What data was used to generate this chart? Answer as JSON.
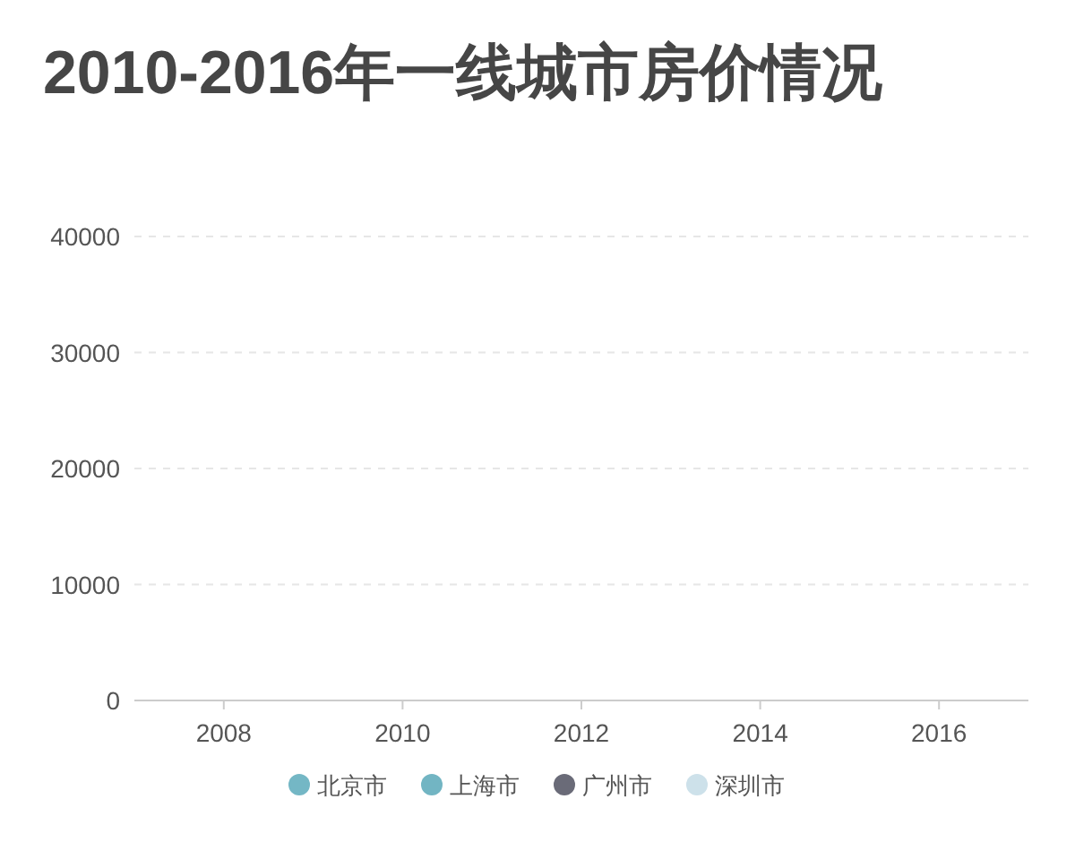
{
  "chart_data": {
    "type": "line",
    "title": "2010-2016年一线城市房价情况",
    "categories": [
      "2008",
      "2010",
      "2012",
      "2014",
      "2016"
    ],
    "series": [
      {
        "name": "北京市",
        "color": "#74b7c5",
        "values": [
          null,
          null,
          null,
          null,
          null
        ]
      },
      {
        "name": "上海市",
        "color": "#72b5c3",
        "values": [
          null,
          null,
          null,
          null,
          null
        ]
      },
      {
        "name": "广州市",
        "color": "#6a6b78",
        "values": [
          null,
          null,
          null,
          null,
          null
        ]
      },
      {
        "name": "深圳市",
        "color": "#cde1ea",
        "values": [
          null,
          null,
          null,
          null,
          null
        ]
      }
    ],
    "ylim": [
      0,
      40000
    ],
    "yticks": [
      0,
      10000,
      20000,
      30000,
      40000
    ],
    "grid": "y",
    "legend": "bottom"
  }
}
